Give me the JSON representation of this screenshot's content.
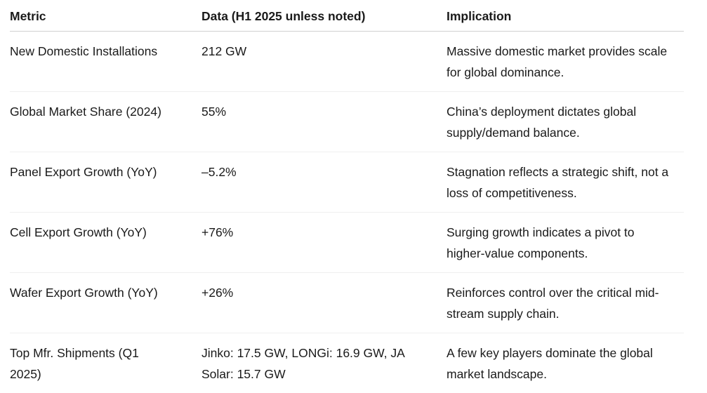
{
  "colors": {
    "text": "#1a1a1a",
    "header_border": "#d0d0d0",
    "row_border": "#efefef",
    "background": "#ffffff"
  },
  "table": {
    "columns": {
      "metric": "Metric",
      "data": "Data (H1 2025 unless noted)",
      "implication": "Implication"
    },
    "rows": [
      {
        "metric": "New Domestic Installations",
        "data": "212 GW",
        "implication": "Massive domestic market provides scale for global dominance."
      },
      {
        "metric": "Global Market Share (2024)",
        "data": "55%",
        "implication": "China’s deployment dictates global supply/demand balance."
      },
      {
        "metric": "Panel Export Growth (YoY)",
        "data": "–5.2%",
        "implication": "Stagnation reflects a strategic shift, not a loss of competitiveness."
      },
      {
        "metric": "Cell Export Growth (YoY)",
        "data": "+76%",
        "implication": "Surging growth indicates a pivot to higher-value components."
      },
      {
        "metric": "Wafer Export Growth (YoY)",
        "data": "+26%",
        "implication": "Reinforces control over the critical mid-stream supply chain."
      },
      {
        "metric": "Top Mfr. Shipments (Q1 2025)",
        "data": "Jinko: 17.5 GW, LONGi: 16.9 GW, JA Solar: 15.7 GW",
        "implication": "A few key players dominate the global market landscape."
      }
    ]
  }
}
